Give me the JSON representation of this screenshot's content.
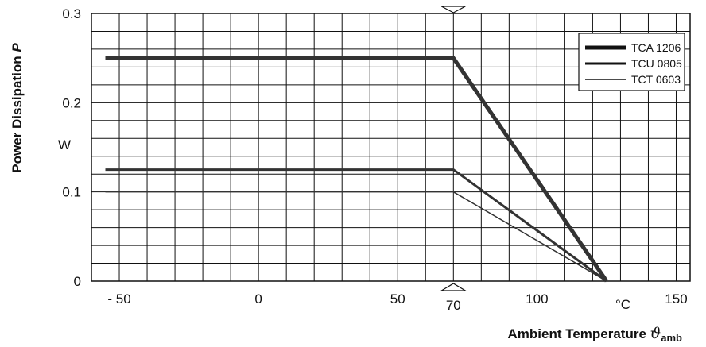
{
  "chart_data": {
    "type": "line",
    "title": "",
    "xlabel": "Ambient Temperature",
    "xlabel_symbol": "ϑ",
    "xlabel_symbol_sub": "amb",
    "ylabel": "Power Dissipation",
    "ylabel_symbol": "P",
    "y_unit": "W",
    "x_unit": "°C",
    "xlim": [
      -60,
      155
    ],
    "ylim": [
      0,
      0.3
    ],
    "x_ticks": [
      {
        "value": -50,
        "label": "- 50"
      },
      {
        "value": 0,
        "label": "0"
      },
      {
        "value": 50,
        "label": "50"
      },
      {
        "value": 70,
        "label": "70"
      },
      {
        "value": 100,
        "label": "100"
      },
      {
        "value": 150,
        "label": "150"
      }
    ],
    "y_ticks": [
      {
        "value": 0,
        "label": "0"
      },
      {
        "value": 0.1,
        "label": "0.1"
      },
      {
        "value": 0.2,
        "label": "0.2"
      },
      {
        "value": 0.3,
        "label": "0.3"
      }
    ],
    "grid": true,
    "legend_position": "top-right",
    "series": [
      {
        "name": "TCA 1206",
        "x": [
          -55,
          70,
          125
        ],
        "y": [
          0.25,
          0.25,
          0
        ]
      },
      {
        "name": "TCU 0805",
        "x": [
          -55,
          70,
          125
        ],
        "y": [
          0.125,
          0.125,
          0
        ]
      },
      {
        "name": "TCT 0603",
        "x": [
          -55,
          70,
          125
        ],
        "y": [
          0.1,
          0.1,
          0
        ]
      }
    ]
  }
}
